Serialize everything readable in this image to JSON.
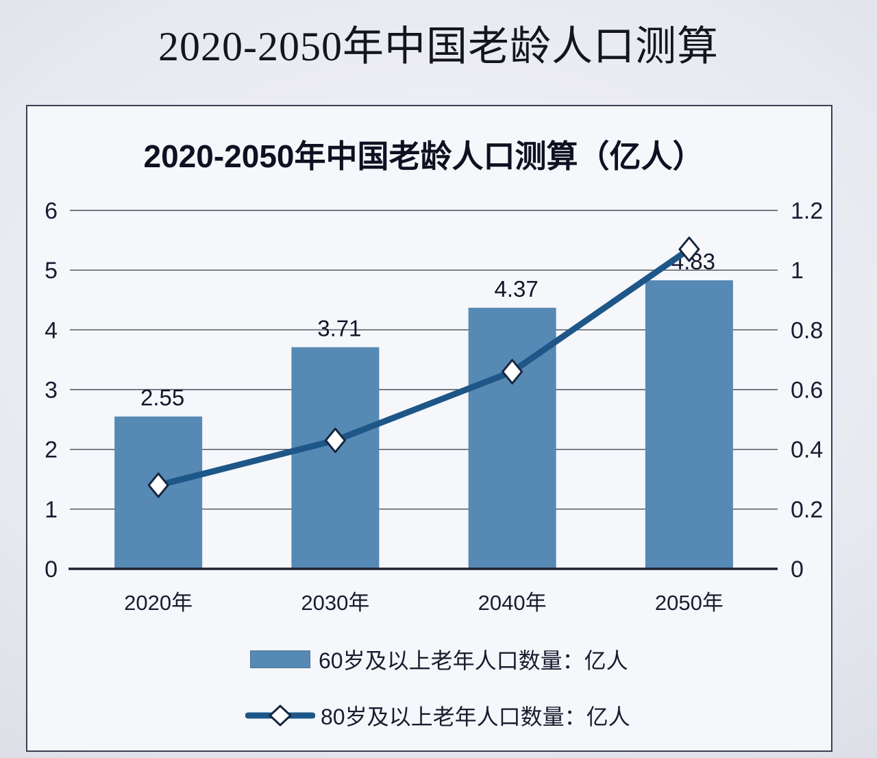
{
  "page": {
    "title": "2020-2050年中国老龄人口测算"
  },
  "chart": {
    "title": "2020-2050年中国老龄人口测算（亿人）",
    "legend": {
      "bar_series_label": "60岁及以上老年人口数量：亿人",
      "line_series_label": "80岁及以上老年人口数量：亿人"
    }
  },
  "chart_data": {
    "type": "bar",
    "title": "2020-2050年中国老龄人口测算（亿人）",
    "categories": [
      "2020年",
      "2030年",
      "2040年",
      "2050年"
    ],
    "series": [
      {
        "name": "60岁及以上老年人口数量：亿人",
        "type": "bar",
        "axis": "left",
        "values": [
          2.55,
          3.71,
          4.37,
          4.83
        ],
        "data_labels": [
          "2.55",
          "3.71",
          "4.37",
          "4.83"
        ],
        "color": "#5689b4"
      },
      {
        "name": "80岁及以上老年人口数量：亿人",
        "type": "line",
        "axis": "right",
        "values": [
          0.28,
          0.43,
          0.66,
          1.07
        ],
        "color": "#1d5687",
        "marker": "diamond",
        "marker_fill": "#ffffff",
        "marker_stroke": "#16263f"
      }
    ],
    "left_axis": {
      "min": 0,
      "max": 6,
      "ticks": [
        0,
        1,
        2,
        3,
        4,
        5,
        6
      ],
      "tick_labels": [
        "0",
        "1",
        "2",
        "3",
        "4",
        "5",
        "6"
      ]
    },
    "right_axis": {
      "min": 0,
      "max": 1.2,
      "ticks": [
        0,
        0.2,
        0.4,
        0.6,
        0.8,
        1,
        1.2
      ],
      "tick_labels": [
        "0",
        "0.2",
        "0.4",
        "0.6",
        "0.8",
        "1",
        "1.2"
      ]
    },
    "grid": true,
    "gridline_color": "#4b4b58",
    "axis_line_color": "#20202f",
    "tick_text_color": "#1b1b30",
    "data_label_color": "#15152a",
    "legend_position": "bottom"
  }
}
